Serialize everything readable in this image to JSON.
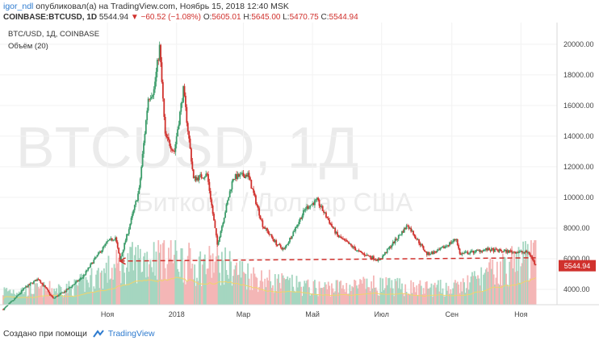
{
  "header": {
    "user": "igor_ndl",
    "published_text": "опубликовал(а) на TradingView.com, Ноябрь 15, 2018 12:40 MSK"
  },
  "symbol_bar": {
    "symbol": "COINBASE:BTCUSD, 1D",
    "price": "5544.94",
    "change": "▼ −60.52 (−1.08%)",
    "o_label": "O:",
    "o": "5605.01",
    "h_label": "H:",
    "h": "5645.00",
    "l_label": "L:",
    "l": "5470.75",
    "c_label": "C:",
    "c": "5544.94"
  },
  "footer": {
    "created_with": "Создано при помощи",
    "brand": "TradingView"
  },
  "colors": {
    "up": "#3c9c6a",
    "down": "#d0312d",
    "volume_up": "#a5d6c0",
    "volume_down": "#f4b6b6",
    "volume_ma": "#f0d46a",
    "support_line": "#d0312d",
    "watermark": "#ebebeb"
  },
  "chart_data": {
    "type": "candlestick",
    "title": "BTC/USD, 1Д, COINBASE",
    "volume_label": "Объём (20)",
    "watermark_symbol": "BTCUSD, 1Д",
    "watermark_name": "Биткойн / Доллар США",
    "y_ticks": [
      "4000.00",
      "6000.00",
      "8000.00",
      "10000.00",
      "12000.00",
      "14000.00",
      "16000.00",
      "18000.00",
      "20000.00"
    ],
    "ylim": [
      3000,
      21200
    ],
    "x_ticks": [
      {
        "date": "2017-11-01",
        "label": "Ноя"
      },
      {
        "date": "2018-01-01",
        "label": "2018"
      },
      {
        "date": "2018-03-01",
        "label": "Мар"
      },
      {
        "date": "2018-05-01",
        "label": "Май"
      },
      {
        "date": "2018-07-01",
        "label": "Июл"
      },
      {
        "date": "2018-09-01",
        "label": "Сен"
      },
      {
        "date": "2018-11-01",
        "label": "Ноя"
      }
    ],
    "x_range": [
      "2017-08-01",
      "2018-11-30"
    ],
    "last_price_label": "5544.94",
    "support_line": {
      "from_date": "2017-11-12",
      "to_date": "2018-11-14",
      "value": 5850
    },
    "price_path": [
      [
        "2017-08-01",
        2700
      ],
      [
        "2017-08-10",
        3300
      ],
      [
        "2017-08-20",
        4100
      ],
      [
        "2017-09-01",
        4700
      ],
      [
        "2017-09-14",
        3400
      ],
      [
        "2017-09-25",
        3900
      ],
      [
        "2017-10-10",
        4800
      ],
      [
        "2017-10-20",
        5900
      ],
      [
        "2017-11-01",
        7100
      ],
      [
        "2017-11-08",
        7400
      ],
      [
        "2017-11-12",
        5900
      ],
      [
        "2017-11-20",
        8000
      ],
      [
        "2017-11-29",
        10500
      ],
      [
        "2017-12-07",
        16500
      ],
      [
        "2017-12-12",
        17000
      ],
      [
        "2017-12-17",
        19800
      ],
      [
        "2017-12-22",
        14000
      ],
      [
        "2017-12-30",
        13000
      ],
      [
        "2018-01-07",
        17000
      ],
      [
        "2018-01-16",
        11200
      ],
      [
        "2018-01-28",
        11500
      ],
      [
        "2018-02-06",
        6900
      ],
      [
        "2018-02-20",
        11300
      ],
      [
        "2018-03-05",
        11500
      ],
      [
        "2018-03-18",
        8200
      ],
      [
        "2018-03-31",
        6900
      ],
      [
        "2018-04-06",
        6600
      ],
      [
        "2018-04-25",
        9300
      ],
      [
        "2018-05-05",
        9800
      ],
      [
        "2018-05-23",
        7500
      ],
      [
        "2018-06-12",
        6400
      ],
      [
        "2018-06-29",
        5900
      ],
      [
        "2018-07-24",
        8200
      ],
      [
        "2018-08-10",
        6300
      ],
      [
        "2018-08-20",
        6500
      ],
      [
        "2018-09-05",
        7300
      ],
      [
        "2018-09-08",
        6300
      ],
      [
        "2018-10-01",
        6600
      ],
      [
        "2018-10-15",
        6500
      ],
      [
        "2018-11-08",
        6400
      ],
      [
        "2018-11-14",
        5545
      ]
    ],
    "volume_path": [
      [
        "2017-08-01",
        0.25
      ],
      [
        "2017-10-01",
        0.3
      ],
      [
        "2017-11-12",
        0.7
      ],
      [
        "2017-12-08",
        0.85
      ],
      [
        "2017-12-22",
        0.95
      ],
      [
        "2018-01-16",
        0.7
      ],
      [
        "2018-02-06",
        0.75
      ],
      [
        "2018-03-18",
        0.45
      ],
      [
        "2018-05-01",
        0.3
      ],
      [
        "2018-06-24",
        0.35
      ],
      [
        "2018-08-01",
        0.3
      ],
      [
        "2018-09-05",
        0.3
      ],
      [
        "2018-11-14",
        0.9
      ]
    ]
  }
}
